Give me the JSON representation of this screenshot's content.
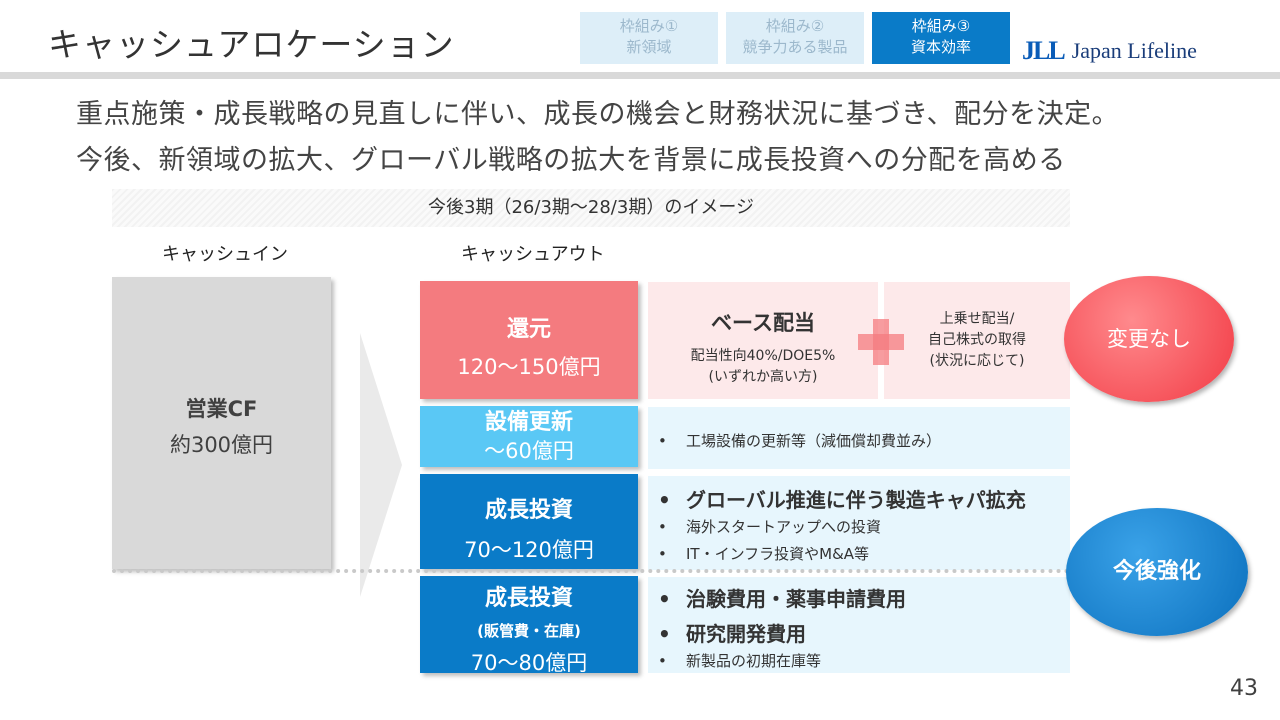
{
  "header": {
    "title": "キャッシュアロケーション",
    "frameworks": [
      {
        "line1": "枠組み①",
        "line2": "新領域",
        "active": false
      },
      {
        "line1": "枠組み②",
        "line2": "競争力ある製品",
        "active": false
      },
      {
        "line1": "枠組み③",
        "line2": "資本効率",
        "active": true
      }
    ],
    "logo": {
      "mark": "JLL",
      "name": "Japan Lifeline"
    }
  },
  "lead": {
    "line1": "重点施策・成長戦略の見直しに伴い、成長の機会と財務状況に基づき、配分を決定。",
    "line2": "今後、新領域の拡大、グローバル戦略の拡大を背景に成長投資への分配を高める"
  },
  "period_label": "今後3期（26/3期～28/3期）のイメージ",
  "cash_in": {
    "label": "キャッシュイン",
    "name": "営業CF",
    "amount": "約300億円"
  },
  "cash_out": {
    "label": "キャッシュアウト",
    "return": {
      "title": "還元",
      "amount": "120～150億円"
    },
    "capex": {
      "title": "設備更新",
      "amount": "～60億円"
    },
    "growth1": {
      "title": "成長投資",
      "amount": "70～120億円"
    },
    "growth2": {
      "title": "成長投資",
      "sub": "(販管費・在庫)",
      "amount": "70～80億円"
    }
  },
  "details": {
    "base_dividend": {
      "title": "ベース配当",
      "line1": "配当性向40%/DOE5%",
      "line2": "(いずれか高い方)"
    },
    "extra_return": {
      "line1": "上乗せ配当/",
      "line2": "自己株式の取得",
      "line3": "(状況に応じて)"
    },
    "capex_items": [
      "工場設備の更新等（減価償却費並み）"
    ],
    "growth1_items": [
      "グローバル推進に伴う製造キャパ拡充",
      "海外スタートアップへの投資",
      "IT・インフラ投資やM&A等"
    ],
    "growth2_items": [
      "治験費用・薬事申請費用",
      "研究開発費用",
      "新製品の初期在庫等"
    ],
    "bullet": "•"
  },
  "badges": {
    "no_change": "変更なし",
    "strengthen": "今後強化"
  },
  "page_number": "43",
  "colors": {
    "return": "#f47b7f",
    "capex": "#5ac8f5",
    "growth": "#0a7bc8",
    "tab_active": "#0a7bc8"
  }
}
